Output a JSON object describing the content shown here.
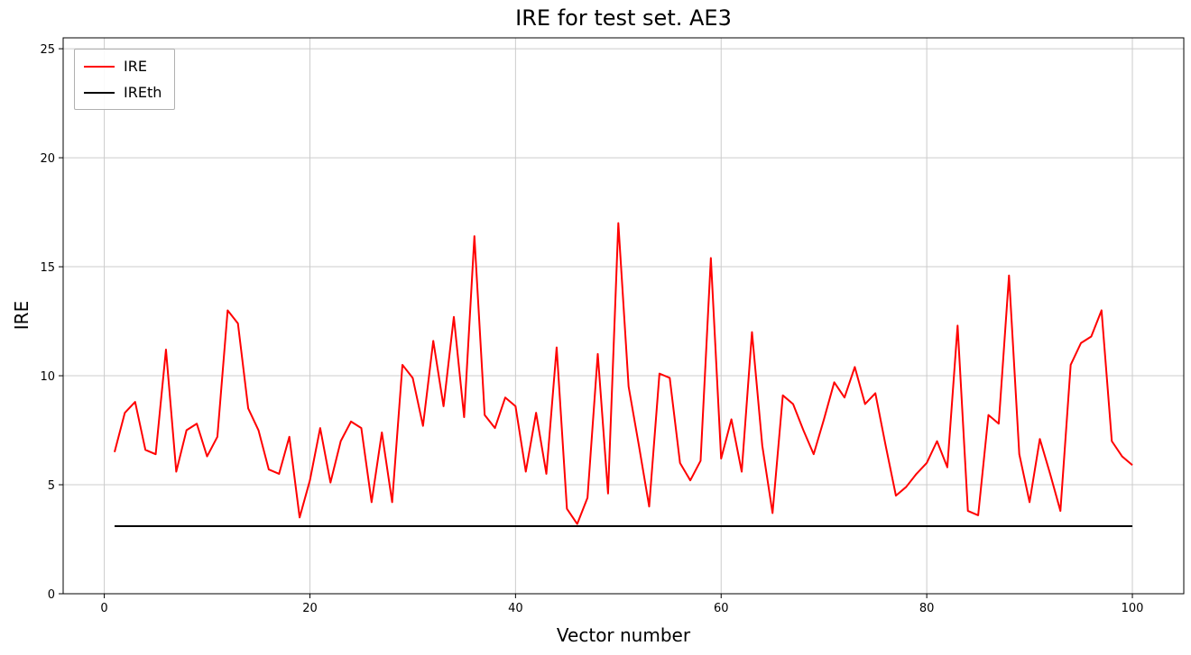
{
  "figure": {
    "background": "#ffffff",
    "grid_color": "#cccccc",
    "frame_color": "#000000"
  },
  "chart_data": {
    "type": "line",
    "title": "IRE for test set. AE3",
    "xlabel": "Vector number",
    "ylabel": "IRE",
    "xlim": [
      -4,
      105
    ],
    "ylim": [
      0,
      25.5
    ],
    "xticks": [
      0,
      20,
      40,
      60,
      80,
      100
    ],
    "yticks": [
      0,
      5,
      10,
      15,
      20,
      25
    ],
    "grid": true,
    "legend_position": "upper left",
    "x": [
      1,
      2,
      3,
      4,
      5,
      6,
      7,
      8,
      9,
      10,
      11,
      12,
      13,
      14,
      15,
      16,
      17,
      18,
      19,
      20,
      21,
      22,
      23,
      24,
      25,
      26,
      27,
      28,
      29,
      30,
      31,
      32,
      33,
      34,
      35,
      36,
      37,
      38,
      39,
      40,
      41,
      42,
      43,
      44,
      45,
      46,
      47,
      48,
      49,
      50,
      51,
      52,
      53,
      54,
      55,
      56,
      57,
      58,
      59,
      60,
      61,
      62,
      63,
      64,
      65,
      66,
      67,
      68,
      69,
      70,
      71,
      72,
      73,
      74,
      75,
      76,
      77,
      78,
      79,
      80,
      81,
      82,
      83,
      84,
      85,
      86,
      87,
      88,
      89,
      90,
      91,
      92,
      93,
      94,
      95,
      96,
      97,
      98,
      99,
      100
    ],
    "series": [
      {
        "name": "IRE",
        "color": "#ff0000",
        "line_width": 2,
        "values": [
          6.5,
          8.3,
          8.8,
          6.6,
          6.4,
          11.2,
          5.6,
          7.5,
          7.8,
          6.3,
          7.2,
          13.0,
          12.4,
          8.5,
          7.5,
          5.7,
          5.5,
          7.2,
          3.5,
          5.2,
          7.6,
          5.1,
          7.0,
          7.9,
          7.6,
          4.2,
          7.4,
          4.2,
          10.5,
          9.9,
          7.7,
          11.6,
          8.6,
          12.7,
          8.1,
          16.4,
          8.2,
          7.6,
          9.0,
          8.6,
          5.6,
          8.3,
          5.5,
          11.3,
          3.9,
          3.2,
          4.4,
          11.0,
          4.6,
          17.0,
          9.5,
          6.8,
          4.0,
          10.1,
          9.9,
          6.0,
          5.2,
          6.1,
          15.4,
          6.2,
          8.0,
          5.6,
          12.0,
          6.8,
          3.7,
          9.1,
          8.7,
          7.5,
          6.4,
          8.0,
          9.7,
          9.0,
          10.4,
          8.7,
          9.2,
          6.8,
          4.5,
          4.9,
          5.5,
          6.0,
          7.0,
          5.8,
          12.3,
          3.8,
          3.6,
          8.2,
          7.8,
          14.6,
          6.4,
          4.2,
          7.1,
          5.5,
          3.8,
          10.5,
          11.5,
          11.8,
          13.0,
          7.0,
          6.3,
          5.9
        ]
      },
      {
        "name": "IREth",
        "color": "#000000",
        "line_width": 2,
        "constant": 3.1
      }
    ]
  }
}
